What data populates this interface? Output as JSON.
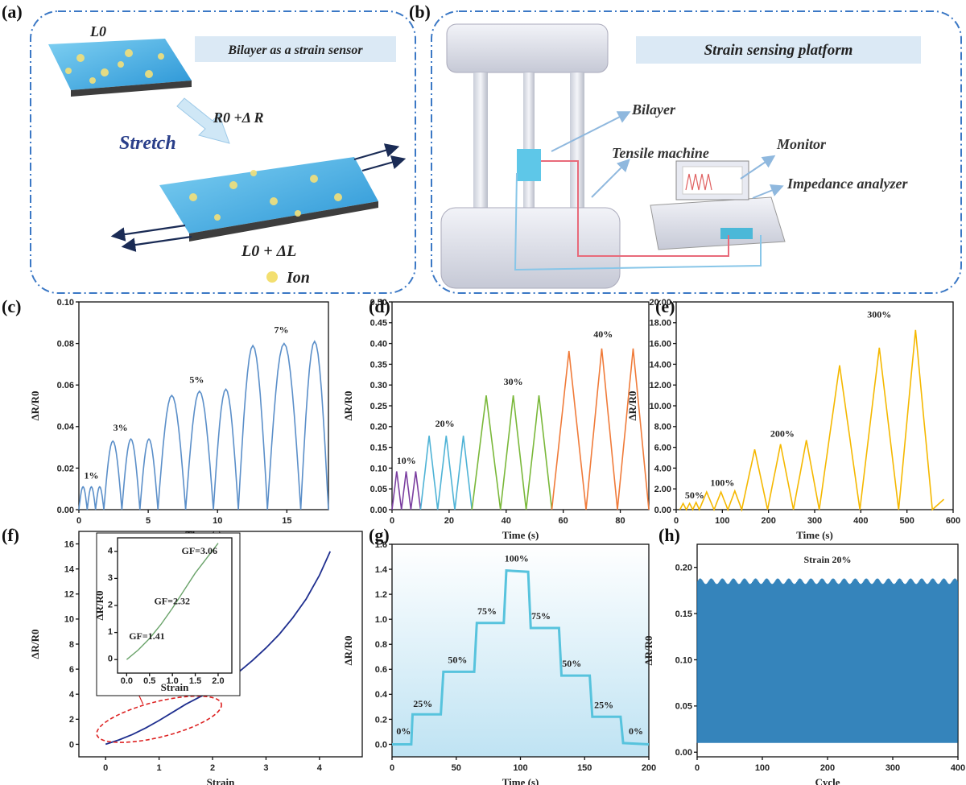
{
  "panels": {
    "a": {
      "letter": "(a)",
      "title": "Bilayer as a strain sensor",
      "l0": "L0",
      "r_label": "R0 +Δ R",
      "stretch": "Stretch",
      "l_dl": "L0 + ΔL",
      "ion": "Ion"
    },
    "b": {
      "letter": "(b)",
      "title": "Strain sensing platform",
      "bilayer": "Bilayer",
      "tensile": "Tensile machine",
      "monitor": "Monitor",
      "impedance": "Impedance analyzer"
    }
  },
  "colors": {
    "blue_line": "#5b8fc9",
    "purple": "#7b3fa0",
    "cyan": "#4fb3d6",
    "green": "#7ab83a",
    "orange": "#f07b3a",
    "yellow": "#f5b800",
    "navy": "#1f2f8f",
    "teal": "#57c3dd",
    "steel": "#1f77b4"
  },
  "chart_data": [
    {
      "id": "c",
      "letter": "(c)",
      "type": "line",
      "xlabel": "Time (s)",
      "ylabel": "ΔR/R0",
      "xlim": [
        0,
        18
      ],
      "ylim": [
        0,
        0.1
      ],
      "xticks": [
        "0",
        "5",
        "10",
        "15"
      ],
      "xtick_values": [
        0,
        5,
        10,
        15
      ],
      "yticks": [
        "0.00",
        "0.02",
        "0.04",
        "0.06",
        "0.08",
        "0.10"
      ],
      "ytick_values": [
        0,
        0.02,
        0.04,
        0.06,
        0.08,
        0.1
      ],
      "series": [
        {
          "color": "#5b8fc9",
          "peaks": [
            {
              "start": 0,
              "end": 0.6,
              "peak": 0.011
            },
            {
              "start": 0.6,
              "end": 1.2,
              "peak": 0.011
            },
            {
              "start": 1.2,
              "end": 1.8,
              "peak": 0.011
            },
            {
              "start": 1.8,
              "end": 3.1,
              "peak": 0.033
            },
            {
              "start": 3.1,
              "end": 4.4,
              "peak": 0.034
            },
            {
              "start": 4.4,
              "end": 5.7,
              "peak": 0.034
            },
            {
              "start": 5.7,
              "end": 7.7,
              "peak": 0.055
            },
            {
              "start": 7.7,
              "end": 9.7,
              "peak": 0.057
            },
            {
              "start": 9.7,
              "end": 11.5,
              "peak": 0.058
            },
            {
              "start": 11.5,
              "end": 13.6,
              "peak": 0.079
            },
            {
              "start": 13.6,
              "end": 16.0,
              "peak": 0.08
            },
            {
              "start": 16.0,
              "end": 18.0,
              "peak": 0.081
            }
          ]
        }
      ],
      "annotations": [
        {
          "text": "1%",
          "x": 0.9,
          "y": 0.015
        },
        {
          "text": "3%",
          "x": 3.0,
          "y": 0.038
        },
        {
          "text": "5%",
          "x": 8.5,
          "y": 0.061
        },
        {
          "text": "7%",
          "x": 14.6,
          "y": 0.085
        }
      ]
    },
    {
      "id": "d",
      "letter": "(d)",
      "type": "line",
      "xlabel": "Time (s)",
      "ylabel": "ΔR/R0",
      "xlim": [
        0,
        90
      ],
      "ylim": [
        0,
        0.5
      ],
      "xticks": [
        "0",
        "20",
        "40",
        "60",
        "80"
      ],
      "xtick_values": [
        0,
        20,
        40,
        60,
        80
      ],
      "yticks": [
        "0.00",
        "0.05",
        "0.10",
        "0.15",
        "0.20",
        "0.25",
        "0.30",
        "0.35",
        "0.40",
        "0.45",
        "0.50"
      ],
      "ytick_values": [
        0,
        0.05,
        0.1,
        0.15,
        0.2,
        0.25,
        0.3,
        0.35,
        0.4,
        0.45,
        0.5
      ],
      "series": [
        {
          "color": "#7b3fa0",
          "peaks": [
            {
              "start": 0,
              "end": 3.3,
              "peak": 0.092
            },
            {
              "start": 3.3,
              "end": 6.6,
              "peak": 0.092
            },
            {
              "start": 6.6,
              "end": 10,
              "peak": 0.092
            }
          ]
        },
        {
          "color": "#4fb3d6",
          "peaks": [
            {
              "start": 10,
              "end": 16,
              "peak": 0.178
            },
            {
              "start": 16,
              "end": 22,
              "peak": 0.178
            },
            {
              "start": 22,
              "end": 28,
              "peak": 0.178
            }
          ]
        },
        {
          "color": "#7ab83a",
          "peaks": [
            {
              "start": 28,
              "end": 38,
              "peak": 0.275
            },
            {
              "start": 38,
              "end": 47,
              "peak": 0.275
            },
            {
              "start": 47,
              "end": 56,
              "peak": 0.275
            }
          ]
        },
        {
          "color": "#f07b3a",
          "peaks": [
            {
              "start": 56,
              "end": 68,
              "peak": 0.382
            },
            {
              "start": 68,
              "end": 79,
              "peak": 0.388
            },
            {
              "start": 79,
              "end": 90,
              "peak": 0.388
            }
          ]
        }
      ],
      "annotations": [
        {
          "text": "10%",
          "x": 5,
          "y": 0.11
        },
        {
          "text": "20%",
          "x": 18.5,
          "y": 0.2
        },
        {
          "text": "30%",
          "x": 42.5,
          "y": 0.3
        },
        {
          "text": "40%",
          "x": 74,
          "y": 0.415
        }
      ]
    },
    {
      "id": "e",
      "letter": "(e)",
      "type": "line",
      "xlabel": "Time (s)",
      "ylabel": "ΔR/R0",
      "xlim": [
        0,
        600
      ],
      "ylim": [
        0,
        20
      ],
      "xticks": [
        "0",
        "100",
        "200",
        "300",
        "400",
        "500",
        "600"
      ],
      "xtick_values": [
        0,
        100,
        200,
        300,
        400,
        500,
        600
      ],
      "yticks": [
        "0.00",
        "2.00",
        "4.00",
        "6.00",
        "8.00",
        "10.00",
        "12.00",
        "14.00",
        "16.00",
        "18.00",
        "20.00"
      ],
      "ytick_values": [
        0,
        2,
        4,
        6,
        8,
        10,
        12,
        14,
        16,
        18,
        20
      ],
      "series": [
        {
          "color": "#f5b800",
          "peaks": [
            {
              "start": 8,
              "end": 22,
              "peak": 0.6
            },
            {
              "start": 22,
              "end": 36,
              "peak": 0.6
            },
            {
              "start": 36,
              "end": 50,
              "peak": 0.7
            },
            {
              "start": 50,
              "end": 82,
              "peak": 1.7
            },
            {
              "start": 82,
              "end": 112,
              "peak": 1.7
            },
            {
              "start": 112,
              "end": 142,
              "peak": 1.8
            },
            {
              "start": 142,
              "end": 198,
              "peak": 5.8
            },
            {
              "start": 198,
              "end": 254,
              "peak": 6.3
            },
            {
              "start": 254,
              "end": 310,
              "peak": 6.7
            },
            {
              "start": 310,
              "end": 398,
              "peak": 13.9
            },
            {
              "start": 398,
              "end": 482,
              "peak": 15.6
            },
            {
              "start": 482,
              "end": 555,
              "peak": 17.3
            }
          ],
          "tail_x": 580,
          "tail_y": 1.0
        }
      ],
      "annotations": [
        {
          "text": "50%",
          "x": 40,
          "y": 1.1
        },
        {
          "text": "100%",
          "x": 100,
          "y": 2.3
        },
        {
          "text": "200%",
          "x": 230,
          "y": 7.0
        },
        {
          "text": "300%",
          "x": 440,
          "y": 18.5
        }
      ]
    },
    {
      "id": "f",
      "letter": "(f)",
      "type": "line",
      "xlabel": "Strain",
      "ylabel": "ΔR/R0",
      "xlim": [
        -0.5,
        4.8
      ],
      "ylim": [
        -1,
        17
      ],
      "xticks": [
        "0",
        "1",
        "2",
        "3",
        "4"
      ],
      "xtick_values": [
        0,
        1,
        2,
        3,
        4
      ],
      "yticks": [
        "0",
        "2",
        "4",
        "6",
        "8",
        "10",
        "12",
        "14",
        "16"
      ],
      "ytick_values": [
        0,
        2,
        4,
        6,
        8,
        10,
        12,
        14,
        16
      ],
      "series": [
        {
          "color": "#1f2f8f",
          "x": [
            0,
            0.25,
            0.5,
            0.75,
            1.0,
            1.25,
            1.5,
            1.75,
            2.0,
            2.25,
            2.5,
            2.75,
            3.0,
            3.25,
            3.5,
            3.75,
            4.0,
            4.2
          ],
          "y": [
            0,
            0.35,
            0.78,
            1.3,
            1.9,
            2.55,
            3.2,
            3.75,
            4.3,
            5.0,
            5.8,
            6.7,
            7.7,
            8.8,
            10.1,
            11.6,
            13.5,
            15.4
          ]
        }
      ],
      "inset": {
        "xlim": [
          -0.2,
          2.3
        ],
        "ylim": [
          -0.5,
          4.5
        ],
        "xticks": [
          "0.0",
          "0.5",
          "1.0",
          "1.5",
          "2.0"
        ],
        "xtick_values": [
          0,
          0.5,
          1.0,
          1.5,
          2.0
        ],
        "yticks": [
          "0",
          "1",
          "2",
          "3",
          "4"
        ],
        "ytick_values": [
          0,
          1,
          2,
          3,
          4
        ],
        "xlabel": "Strain",
        "ylabel": "ΔR/R0",
        "x": [
          0,
          0.25,
          0.5,
          0.75,
          1.0,
          1.25,
          1.5,
          1.75,
          2.0
        ],
        "y": [
          0,
          0.35,
          0.78,
          1.3,
          1.9,
          2.55,
          3.2,
          3.75,
          4.3
        ],
        "annotations": [
          {
            "text": "GF=1.41",
            "x": 0.05,
            "y": 0.75
          },
          {
            "text": "GF=2.32",
            "x": 0.6,
            "y": 2.05
          },
          {
            "text": "GF=3.06",
            "x": 1.2,
            "y": 3.9
          }
        ]
      }
    },
    {
      "id": "g",
      "letter": "(g)",
      "type": "line",
      "xlabel": "Time (s)",
      "ylabel": "ΔR/R0",
      "xlim": [
        0,
        200
      ],
      "ylim": [
        -0.1,
        1.6
      ],
      "xticks": [
        "0",
        "50",
        "100",
        "150",
        "200"
      ],
      "xtick_values": [
        0,
        50,
        100,
        150,
        200
      ],
      "yticks": [
        "0.0",
        "0.2",
        "0.4",
        "0.6",
        "0.8",
        "1.0",
        "1.2",
        "1.4",
        "1.6"
      ],
      "ytick_values": [
        0,
        0.2,
        0.4,
        0.6,
        0.8,
        1.0,
        1.2,
        1.4,
        1.6
      ],
      "series": [
        {
          "color": "#57c3dd",
          "x": [
            0,
            15,
            16,
            38,
            40,
            64,
            66,
            87,
            89,
            106,
            108,
            130,
            132,
            154,
            156,
            178,
            180,
            200
          ],
          "y": [
            0,
            0,
            0.24,
            0.24,
            0.58,
            0.58,
            0.97,
            0.97,
            1.39,
            1.38,
            0.93,
            0.93,
            0.55,
            0.55,
            0.22,
            0.22,
            0.01,
            0.0
          ]
        }
      ],
      "annotations": [
        {
          "text": "0%",
          "x": 9,
          "y": 0.08
        },
        {
          "text": "25%",
          "x": 24,
          "y": 0.3
        },
        {
          "text": "50%",
          "x": 51,
          "y": 0.65
        },
        {
          "text": "75%",
          "x": 74,
          "y": 1.04
        },
        {
          "text": "100%",
          "x": 97,
          "y": 1.46
        },
        {
          "text": "75%",
          "x": 116,
          "y": 1.0
        },
        {
          "text": "50%",
          "x": 140,
          "y": 0.62
        },
        {
          "text": "25%",
          "x": 165,
          "y": 0.29
        },
        {
          "text": "0%",
          "x": 190,
          "y": 0.08
        }
      ]
    },
    {
      "id": "h",
      "letter": "(h)",
      "type": "area",
      "xlabel": "Cycle",
      "ylabel": "ΔR/R0",
      "xlim": [
        0,
        400
      ],
      "ylim": [
        -0.005,
        0.225
      ],
      "xticks": [
        "0",
        "100",
        "200",
        "300",
        "400"
      ],
      "xtick_values": [
        0,
        100,
        200,
        300,
        400
      ],
      "yticks": [
        "0.00",
        "0.05",
        "0.10",
        "0.15",
        "0.20"
      ],
      "ytick_values": [
        0,
        0.05,
        0.1,
        0.15,
        0.2
      ],
      "series": [
        {
          "color": "#1f77b4",
          "cycles": 400,
          "max": 0.185,
          "min": 0.01
        }
      ],
      "annotations": [
        {
          "text": "Strain 20%",
          "x": 200,
          "y": 0.205
        }
      ]
    }
  ]
}
